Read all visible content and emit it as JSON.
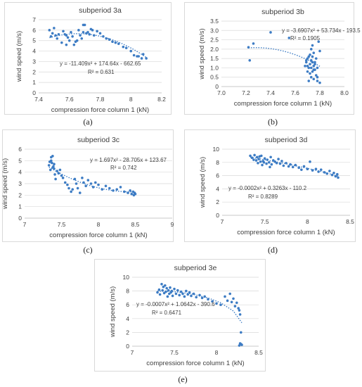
{
  "captions": [
    "(a)",
    "(b)",
    "(c)",
    "(d)",
    "(e)"
  ],
  "colors": {
    "points": "#3d7cc4",
    "trend": "#3d7cc4",
    "grid": "#d9d9d9",
    "axis": "#bfbfbf",
    "text": "#404040"
  },
  "chart_data": [
    {
      "type": "scatter",
      "title": "subperiod 3a",
      "xlabel": "compression force column 1 (kN)",
      "ylabel": "wind speed (m/s)",
      "xlim": [
        7.4,
        8.2
      ],
      "ylim": [
        0,
        7
      ],
      "xticks": [
        7.4,
        7.6,
        7.8,
        8.0,
        8.2
      ],
      "xtick_labels": [
        "7.4",
        "7.6",
        "7.8",
        "8",
        "8.2"
      ],
      "yticks": [
        0,
        1,
        2,
        3,
        4,
        5,
        6,
        7
      ],
      "ytick_labels": [
        "0",
        "1",
        "2",
        "3",
        "4",
        "5",
        "6",
        "7"
      ],
      "equation": "y = -11.409x² + 174.64x - 662.65",
      "r2": "R² = 0.631",
      "trend_coeffs": [
        -11.409,
        174.64,
        -662.65
      ],
      "trend_range": [
        7.47,
        8.1
      ],
      "x": [
        7.47,
        7.48,
        7.49,
        7.5,
        7.51,
        7.52,
        7.53,
        7.55,
        7.56,
        7.57,
        7.58,
        7.59,
        7.6,
        7.61,
        7.62,
        7.63,
        7.65,
        7.66,
        7.67,
        7.68,
        7.69,
        7.7,
        7.71,
        7.72,
        7.73,
        7.74,
        7.75,
        7.76,
        7.78,
        7.8,
        7.82,
        7.84,
        7.86,
        7.88,
        7.9,
        7.92,
        7.95,
        7.97,
        8.0,
        8.02,
        8.04,
        8.05,
        8.07,
        8.08,
        8.1,
        7.58,
        7.64,
        7.69
      ],
      "y": [
        6.0,
        5.4,
        5.7,
        6.2,
        5.5,
        5.2,
        5.6,
        4.8,
        5.9,
        5.6,
        5.5,
        5.3,
        5.0,
        5.8,
        5.4,
        4.6,
        5.0,
        6.0,
        5.5,
        5.2,
        6.5,
        6.5,
        5.7,
        5.8,
        5.6,
        6.1,
        6.0,
        5.5,
        5.9,
        5.7,
        5.4,
        5.2,
        5.1,
        4.9,
        4.8,
        4.7,
        4.4,
        4.3,
        4.0,
        3.6,
        3.5,
        3.5,
        3.3,
        3.7,
        3.3,
        4.6,
        4.9,
        5.8
      ]
    },
    {
      "type": "scatter",
      "title": "subperiod 3b",
      "xlabel": "compression force column 1 (kN)",
      "ylabel": "wind speed (m/s)",
      "xlim": [
        7.0,
        8.0
      ],
      "ylim": [
        0,
        3.5
      ],
      "xticks": [
        7.0,
        7.2,
        7.4,
        7.6,
        7.8,
        8.0
      ],
      "xtick_labels": [
        "7.0",
        "7.2",
        "7.4",
        "7.6",
        "7.8",
        "8.0"
      ],
      "yticks": [
        0,
        0.5,
        1.0,
        1.5,
        2.0,
        2.5,
        3.0,
        3.5
      ],
      "ytick_labels": [
        "0",
        "0.5",
        "1.0",
        "1.5",
        "2.0",
        "2.5",
        "3.0",
        "3.5"
      ],
      "equation": "y = -3.6907x² + 53.734x - 193.5",
      "r2": "R² = 0.1905",
      "trend_coeffs": [
        -3.6907,
        53.734,
        -193.5
      ],
      "trend_range": [
        7.22,
        7.8
      ],
      "x": [
        7.22,
        7.23,
        7.26,
        7.4,
        7.55,
        7.68,
        7.69,
        7.7,
        7.7,
        7.71,
        7.71,
        7.72,
        7.72,
        7.73,
        7.73,
        7.73,
        7.74,
        7.74,
        7.74,
        7.75,
        7.75,
        7.75,
        7.76,
        7.76,
        7.77,
        7.77,
        7.78,
        7.78,
        7.79,
        7.8,
        7.7,
        7.72,
        7.74,
        7.76,
        7.71,
        7.73,
        7.75,
        7.69,
        7.78,
        7.8
      ],
      "y": [
        2.1,
        1.4,
        2.3,
        2.9,
        2.6,
        1.1,
        1.3,
        0.8,
        1.5,
        0.3,
        1.0,
        1.2,
        1.7,
        0.5,
        1.4,
        2.0,
        0.8,
        1.6,
        2.2,
        1.1,
        0.4,
        1.8,
        1.3,
        0.9,
        1.5,
        0.6,
        0.3,
        1.0,
        2.4,
        1.9,
        1.1,
        0.7,
        1.3,
        1.2,
        1.6,
        1.0,
        0.9,
        1.4,
        0.5,
        0.2
      ]
    },
    {
      "type": "scatter",
      "title": "subperiod 3c",
      "xlabel": "compression force column 1 (kN)",
      "ylabel": "wind speed (m/s)",
      "xlim": [
        7,
        9
      ],
      "ylim": [
        0,
        6
      ],
      "xticks": [
        7,
        7.5,
        8,
        8.5,
        9
      ],
      "xtick_labels": [
        "7",
        "7.5",
        "8",
        "8.5",
        "9"
      ],
      "yticks": [
        0,
        1,
        2,
        3,
        4,
        5,
        6
      ],
      "ytick_labels": [
        "0",
        "1",
        "2",
        "3",
        "4",
        "5",
        "6"
      ],
      "equation": "y = 1.697x² - 28.705x + 123.67",
      "r2": "R² = 0.742",
      "trend_coeffs": [
        1.697,
        -28.705,
        123.67
      ],
      "trend_range": [
        7.33,
        8.5
      ],
      "x": [
        7.33,
        7.34,
        7.35,
        7.36,
        7.37,
        7.38,
        7.39,
        7.4,
        7.41,
        7.42,
        7.44,
        7.46,
        7.48,
        7.5,
        7.52,
        7.55,
        7.58,
        7.6,
        7.63,
        7.65,
        7.68,
        7.7,
        7.72,
        7.75,
        7.78,
        7.8,
        7.83,
        7.86,
        7.9,
        7.93,
        7.96,
        8.0,
        8.05,
        8.1,
        8.15,
        8.2,
        8.25,
        8.3,
        8.35,
        8.4,
        8.43,
        8.45,
        8.47,
        8.48,
        8.49,
        8.5,
        7.36,
        7.38,
        7.4
      ],
      "y": [
        4.6,
        4.9,
        4.2,
        5.3,
        4.8,
        5.4,
        4.5,
        4.3,
        3.8,
        3.4,
        4.1,
        3.9,
        4.2,
        3.7,
        3.5,
        3.1,
        2.9,
        2.6,
        2.3,
        2.5,
        3.4,
        3.0,
        2.6,
        2.2,
        3.5,
        3.1,
        2.8,
        3.3,
        3.0,
        2.7,
        3.1,
        2.9,
        2.5,
        2.8,
        2.6,
        2.4,
        2.5,
        2.7,
        2.3,
        2.2,
        2.4,
        2.1,
        2.3,
        2.0,
        2.2,
        2.1,
        5.0,
        4.4,
        4.7
      ]
    },
    {
      "type": "scatter",
      "title": "subperiod 3d",
      "xlabel": "compression force column 1 (kN)",
      "ylabel": "wind speed (m/s)",
      "xlim": [
        7,
        8.5
      ],
      "ylim": [
        0,
        10
      ],
      "xticks": [
        7,
        7.5,
        8,
        8.5
      ],
      "xtick_labels": [
        "7",
        "7.5",
        "8",
        "8.5"
      ],
      "yticks": [
        0,
        2,
        4,
        6,
        8,
        10
      ],
      "ytick_labels": [
        "0",
        "2",
        "4",
        "6",
        "8",
        "10"
      ],
      "equation": "y = -0.0002x² + 0.3263x - 110.2",
      "r2": "R² = 0.8289",
      "trend_line": {
        "x": [
          7.33,
          7.5,
          7.75,
          8.0,
          8.2,
          8.36
        ],
        "y": [
          8.8,
          8.4,
          7.8,
          7.1,
          6.5,
          5.9
        ]
      },
      "x": [
        7.33,
        7.35,
        7.37,
        7.38,
        7.4,
        7.41,
        7.42,
        7.43,
        7.45,
        7.46,
        7.47,
        7.48,
        7.5,
        7.52,
        7.53,
        7.55,
        7.57,
        7.58,
        7.6,
        7.62,
        7.64,
        7.66,
        7.68,
        7.7,
        7.72,
        7.75,
        7.78,
        7.8,
        7.83,
        7.86,
        7.9,
        7.93,
        7.96,
        8.0,
        8.03,
        8.06,
        8.1,
        8.13,
        8.16,
        8.2,
        8.23,
        8.26,
        8.29,
        8.31,
        8.33,
        8.35,
        8.36,
        7.44,
        7.49,
        7.56
      ],
      "y": [
        9.0,
        8.7,
        8.4,
        9.1,
        8.3,
        8.8,
        7.9,
        8.5,
        8.1,
        9.0,
        7.6,
        8.2,
        8.6,
        7.8,
        8.4,
        8.0,
        8.8,
        7.7,
        8.3,
        8.1,
        7.9,
        8.5,
        7.8,
        8.2,
        7.5,
        7.9,
        7.4,
        7.7,
        7.3,
        7.6,
        7.2,
        6.9,
        7.4,
        7.0,
        8.1,
        6.8,
        7.0,
        6.6,
        6.9,
        6.5,
        6.3,
        6.7,
        6.1,
        6.4,
        5.9,
        6.2,
        5.7,
        8.9,
        8.0,
        7.3
      ]
    },
    {
      "type": "scatter",
      "title": "subperiod 3e",
      "xlabel": "compression force column 1 (kN)",
      "ylabel": "wind speed (m/s)",
      "xlim": [
        7,
        8.5
      ],
      "ylim": [
        0,
        10
      ],
      "xticks": [
        7,
        7.5,
        8,
        8.5
      ],
      "xtick_labels": [
        "7",
        "7.5",
        "8",
        "8.5"
      ],
      "yticks": [
        0,
        2,
        4,
        6,
        8,
        10
      ],
      "ytick_labels": [
        "0",
        "2",
        "4",
        "6",
        "8",
        "10"
      ],
      "equation": "y = -0.0007x² + 1.0642x - 390.6",
      "r2": "R² = 0.6471",
      "trend_line": {
        "x": [
          7.3,
          7.5,
          7.7,
          7.9,
          8.05,
          8.2,
          8.3
        ],
        "y": [
          8.0,
          7.9,
          7.6,
          7.0,
          6.3,
          5.1,
          3.4
        ]
      },
      "x": [
        7.3,
        7.32,
        7.33,
        7.35,
        7.36,
        7.37,
        7.38,
        7.39,
        7.4,
        7.41,
        7.42,
        7.43,
        7.44,
        7.45,
        7.46,
        7.47,
        7.48,
        7.5,
        7.52,
        7.54,
        7.56,
        7.58,
        7.6,
        7.62,
        7.64,
        7.66,
        7.68,
        7.7,
        7.73,
        7.76,
        7.8,
        7.83,
        7.86,
        7.9,
        7.95,
        8.0,
        8.05,
        8.1,
        8.13,
        8.16,
        8.18,
        8.2,
        8.22,
        8.24,
        8.26,
        8.27,
        8.28,
        8.29,
        8.3,
        8.28,
        8.27,
        8.29
      ],
      "y": [
        7.8,
        8.2,
        7.5,
        9.0,
        8.1,
        8.6,
        7.7,
        8.8,
        7.9,
        8.4,
        7.2,
        8.1,
        7.6,
        8.5,
        7.8,
        8.0,
        7.3,
        8.3,
        7.6,
        8.1,
        7.4,
        7.9,
        7.6,
        7.2,
        8.0,
        7.5,
        7.8,
        7.3,
        7.6,
        7.1,
        7.4,
        7.0,
        7.2,
        6.8,
        6.5,
        6.2,
        6.0,
        7.2,
        6.6,
        7.6,
        6.4,
        6.9,
        5.8,
        6.3,
        5.5,
        5.2,
        4.6,
        2.0,
        0.2,
        0.4,
        0.1,
        0.3
      ]
    }
  ]
}
